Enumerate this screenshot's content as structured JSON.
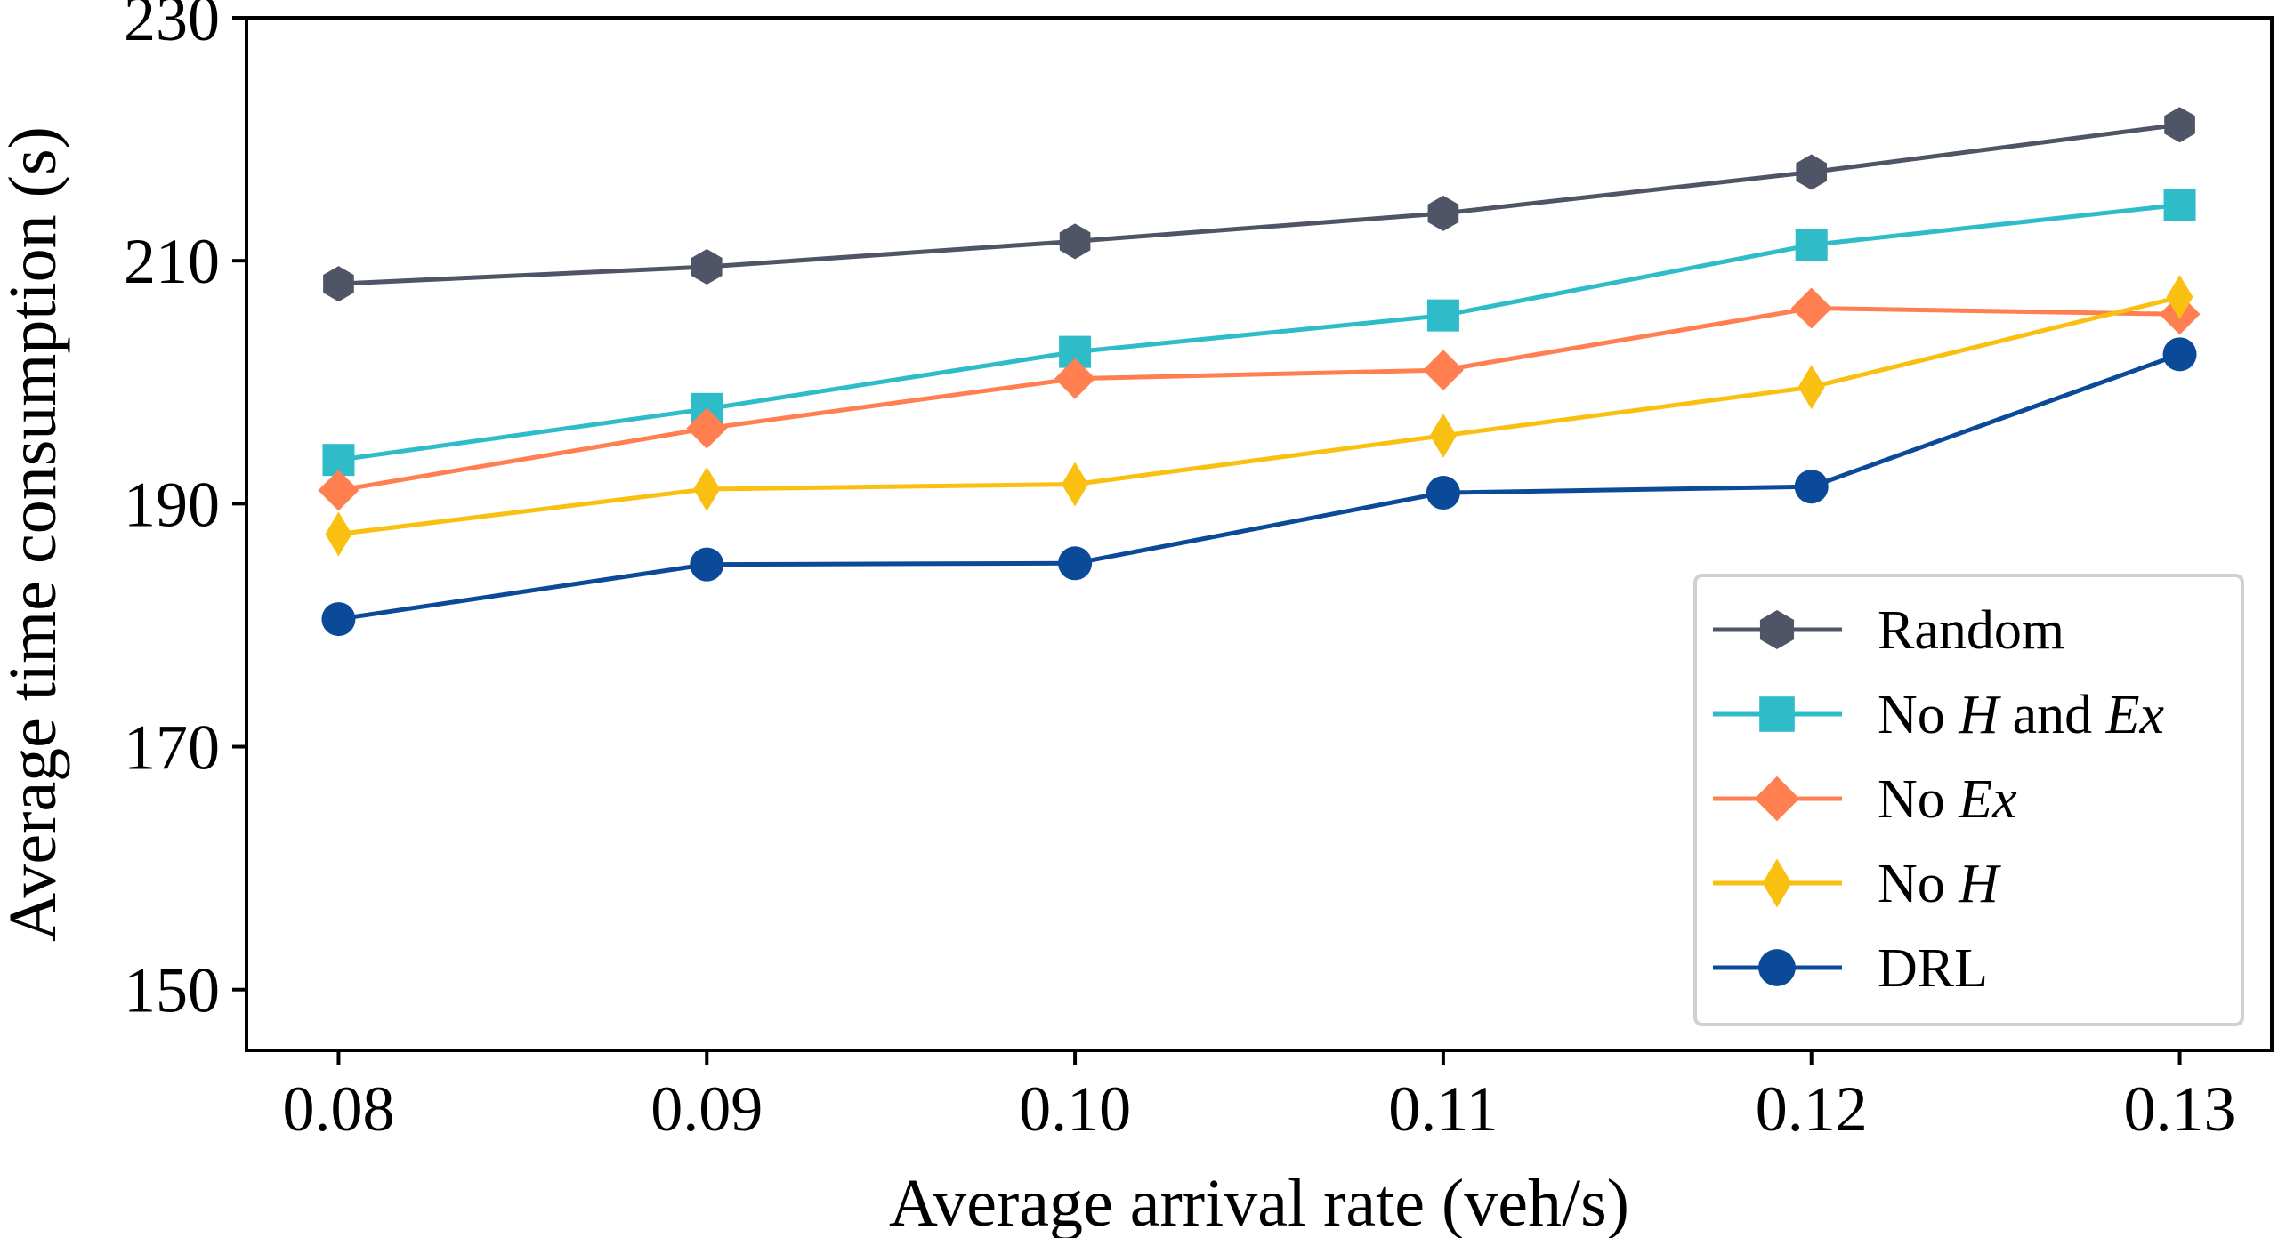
{
  "chart_data": {
    "type": "line",
    "xlabel": "Average arrival rate (veh/s)",
    "ylabel": "Average time consumption (s)",
    "x": [
      0.08,
      0.09,
      0.1,
      0.11,
      0.12,
      0.13
    ],
    "x_tick_labels": [
      "0.08",
      "0.09",
      "0.10",
      "0.11",
      "0.12",
      "0.13"
    ],
    "xlim": [
      0.0775,
      0.1325
    ],
    "ylim": [
      145,
      230
    ],
    "y_ticks": [
      150,
      170,
      190,
      210,
      230
    ],
    "y_tick_labels": [
      "150",
      "170",
      "190",
      "210",
      "230"
    ],
    "grid": false,
    "legend_position": "lower-right",
    "series": [
      {
        "name": "Random",
        "legend_parts": [
          {
            "text": "Random",
            "italic": false
          }
        ],
        "color": "#4f5466",
        "marker": "hexagon",
        "values": [
          208.1,
          209.5,
          211.6,
          213.9,
          217.3,
          221.2
        ]
      },
      {
        "name": "No H and Ex",
        "legend_parts": [
          {
            "text": "No ",
            "italic": false
          },
          {
            "text": "H",
            "italic": true
          },
          {
            "text": " and ",
            "italic": false
          },
          {
            "text": "Ex",
            "italic": true
          }
        ],
        "color": "#2ebcc8",
        "marker": "square",
        "values": [
          193.6,
          197.8,
          202.5,
          205.5,
          211.3,
          214.6
        ]
      },
      {
        "name": "No Ex",
        "legend_parts": [
          {
            "text": "No ",
            "italic": false
          },
          {
            "text": "Ex",
            "italic": true
          }
        ],
        "color": "#ff7f50",
        "marker": "diamond",
        "values": [
          191.1,
          196.2,
          200.3,
          201.0,
          206.1,
          205.6
        ]
      },
      {
        "name": "No H",
        "legend_parts": [
          {
            "text": "No ",
            "italic": false
          },
          {
            "text": "H",
            "italic": true
          }
        ],
        "color": "#f9c012",
        "marker": "thin-diamond",
        "values": [
          187.5,
          191.2,
          191.6,
          195.6,
          199.6,
          207.0
        ]
      },
      {
        "name": "DRL",
        "legend_parts": [
          {
            "text": "DRL",
            "italic": false
          }
        ],
        "color": "#0b4a99",
        "marker": "circle",
        "values": [
          180.5,
          185.0,
          185.1,
          190.9,
          191.4,
          202.3
        ]
      }
    ]
  }
}
